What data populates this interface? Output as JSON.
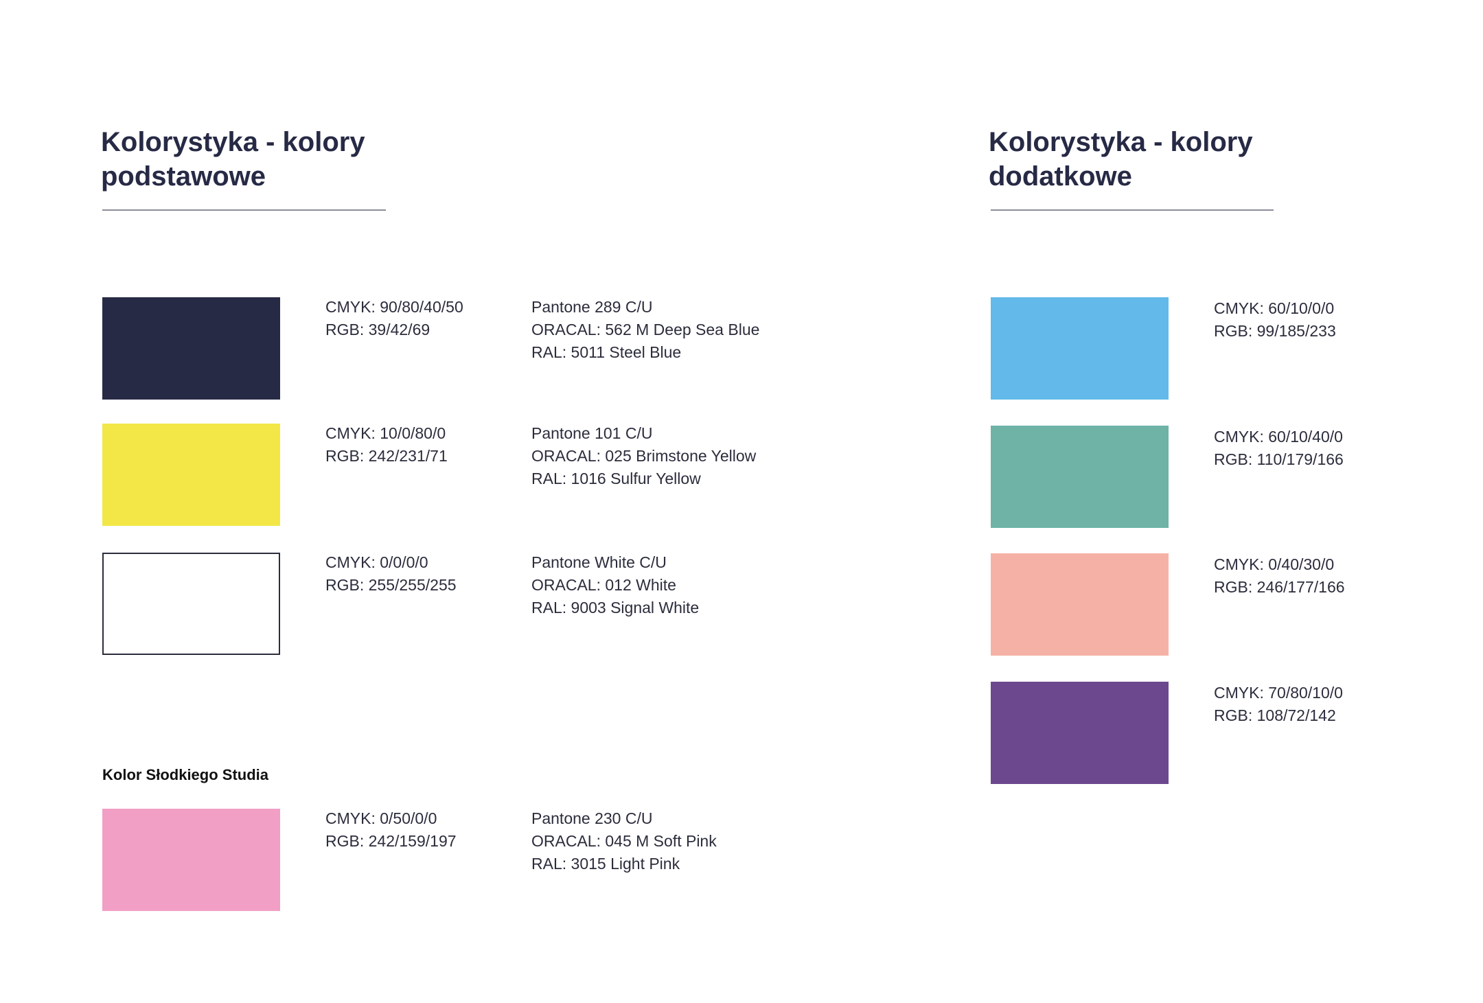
{
  "left": {
    "title": "Kolorystyka - kolory podstawowe",
    "colors": [
      {
        "color": "#272a45",
        "specs": [
          "CMYK: 90/80/40/50",
          "RGB: 39/42/69"
        ],
        "refs": [
          "Pantone 289 C/U",
          "ORACAL: 562 M Deep Sea Blue",
          "RAL: 5011 Steel Blue"
        ]
      },
      {
        "color": "#f2e747",
        "specs": [
          "CMYK: 10/0/80/0",
          "RGB: 242/231/71"
        ],
        "refs": [
          "Pantone 101 C/U",
          "ORACAL: 025 Brimstone Yellow",
          "RAL: 1016 Sulfur Yellow"
        ]
      },
      {
        "color": "#ffffff",
        "specs": [
          "CMYK: 0/0/0/0",
          "RGB: 255/255/255"
        ],
        "refs": [
          "Pantone White C/U",
          "ORACAL: 012 White",
          "RAL: 9003 Signal White"
        ]
      }
    ],
    "studio": {
      "label": "Kolor Słodkiego Studia",
      "color": "#f29fc5",
      "specs": [
        "CMYK: 0/50/0/0",
        "RGB: 242/159/197"
      ],
      "refs": [
        "Pantone 230 C/U",
        "ORACAL: 045 M Soft Pink",
        "RAL: 3015 Light Pink"
      ]
    }
  },
  "right": {
    "title": "Kolorystyka - kolory dodatkowe",
    "colors": [
      {
        "color": "#63b9e9",
        "specs": [
          "CMYK: 60/10/0/0",
          "RGB: 99/185/233"
        ]
      },
      {
        "color": "#6eb3a6",
        "specs": [
          "CMYK: 60/10/40/0",
          "RGB: 110/179/166"
        ]
      },
      {
        "color": "#f6b1a6",
        "specs": [
          "CMYK: 0/40/30/0",
          "RGB: 246/177/166"
        ]
      },
      {
        "color": "#6c488e",
        "specs": [
          "CMYK: 70/80/10/0",
          "RGB: 108/72/142"
        ]
      }
    ]
  }
}
